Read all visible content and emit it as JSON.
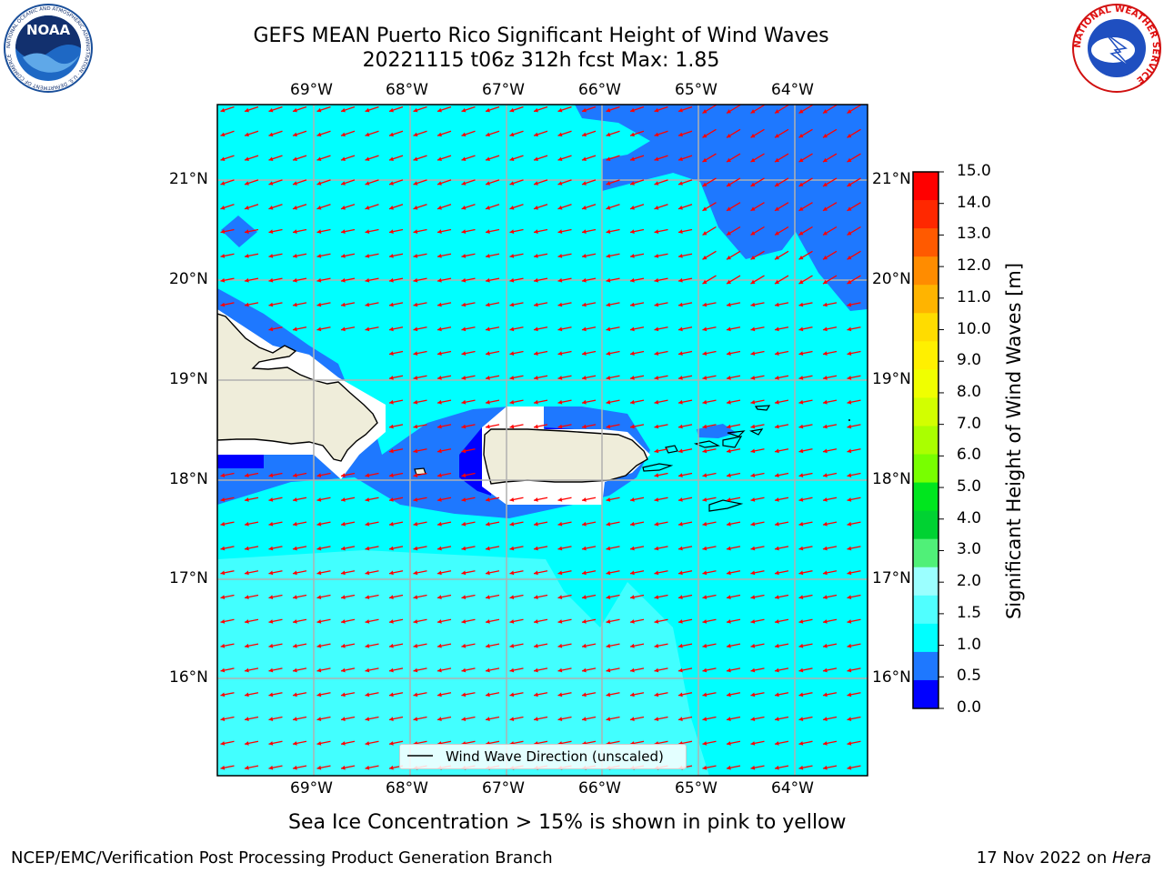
{
  "header": {
    "title_line1": "GEFS MEAN Puerto Rico Significant Height of Wind Waves",
    "title_line2": "20221115 t06z 312h fcst   Max: 1.85"
  },
  "map": {
    "lon_ticks": [
      "69°W",
      "68°W",
      "67°W",
      "66°W",
      "65°W",
      "64°W"
    ],
    "lat_ticks": [
      "21°N",
      "20°N",
      "19°N",
      "18°N",
      "17°N",
      "16°N"
    ],
    "legend_label": "Wind Wave Direction (unscaled)",
    "colors": {
      "0.0-0.5": "#0000ff",
      "0.5-1.0": "#1e78ff",
      "1.0-1.5": "#00ffff",
      "1.5-2.0": "#42ffff",
      "land": "#efedda",
      "arrow": "#ff0000",
      "grid": "#b0b0b0"
    }
  },
  "colorbar": {
    "title": "Significant Height of Wind Waves [m]",
    "labels": [
      "15.0",
      "14.0",
      "13.0",
      "12.0",
      "11.0",
      "10.0",
      "9.0",
      "8.0",
      "7.0",
      "6.0",
      "5.0",
      "4.0",
      "3.0",
      "2.0",
      "1.5",
      "1.0",
      "0.5",
      "0.0"
    ],
    "colors_top_to_bottom": [
      "#ff0000",
      "#ff2800",
      "#ff5a00",
      "#ff8c00",
      "#ffb400",
      "#ffdc00",
      "#fff000",
      "#f0ff00",
      "#d2ff00",
      "#aaff00",
      "#78ff00",
      "#00e61e",
      "#00d232",
      "#50f078",
      "#9bffff",
      "#50ffff",
      "#00ffff",
      "#1e78ff",
      "#0000ff"
    ]
  },
  "footer": {
    "ice_note": "Sea Ice Concentration > 15% is shown in pink to yellow",
    "branch": "NCEP/EMC/Verification Post Processing Product Generation Branch",
    "date": "17 Nov 2022 on ",
    "host": "Hera"
  },
  "logos": {
    "noaa_text": "NOAA",
    "noaa_ring": "NATIONAL OCEANIC AND ATMOSPHERIC ADMINISTRATION · U.S. DEPARTMENT OF COMMERCE",
    "nws_ring": "NATIONAL WEATHER SERVICE"
  }
}
